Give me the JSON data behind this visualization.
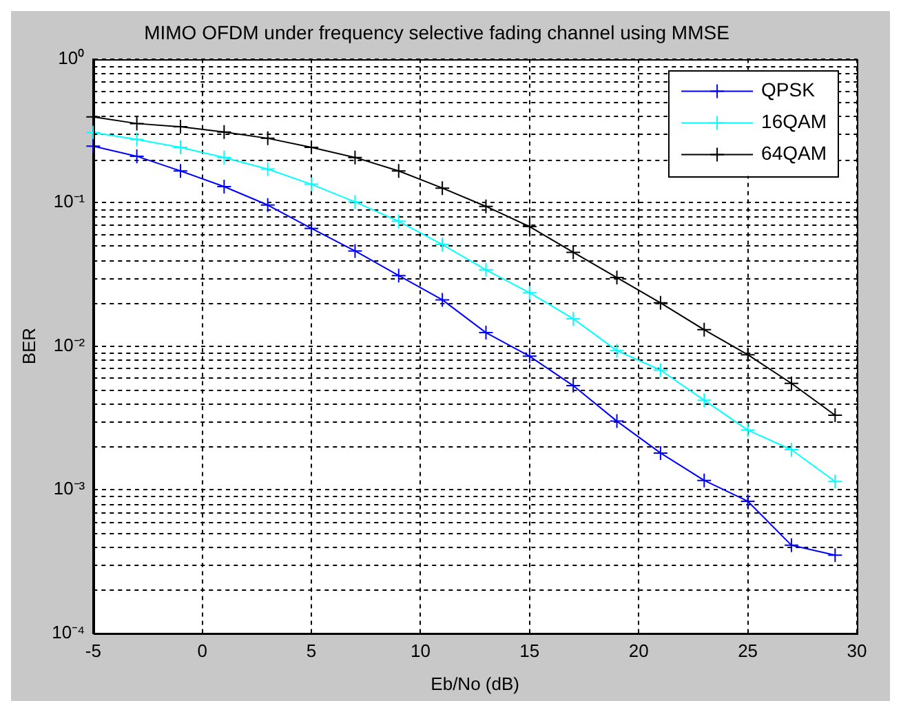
{
  "chart_data": {
    "type": "line",
    "title": "MIMO OFDM under frequency selective fading channel using MMSE",
    "xlabel": "Eb/No (dB)",
    "ylabel": "BER",
    "x": [
      -5,
      -3,
      -1,
      1,
      3,
      5,
      7,
      9,
      11,
      13,
      15,
      17,
      19,
      21,
      23,
      25,
      27,
      29
    ],
    "series": [
      {
        "name": "QPSK",
        "color": "#0000ff",
        "values": [
          0.247,
          0.21,
          0.166,
          0.129,
          0.096,
          0.066,
          0.046,
          0.031,
          0.021,
          0.0124,
          0.0085,
          0.0053,
          0.003,
          0.0018,
          0.00116,
          0.00083,
          0.00041,
          0.00035
        ]
      },
      {
        "name": "16QAM",
        "color": "#00ffff",
        "values": [
          0.307,
          0.275,
          0.242,
          0.206,
          0.171,
          0.134,
          0.101,
          0.074,
          0.051,
          0.034,
          0.0235,
          0.0155,
          0.0093,
          0.0068,
          0.0042,
          0.0026,
          0.0019,
          0.00114
        ]
      },
      {
        "name": "64QAM",
        "color": "#000000",
        "values": [
          0.395,
          0.355,
          0.337,
          0.31,
          0.28,
          0.242,
          0.206,
          0.166,
          0.126,
          0.094,
          0.068,
          0.045,
          0.03,
          0.02,
          0.013,
          0.0087,
          0.0055,
          0.0033
        ]
      }
    ],
    "xlim": [
      -5,
      30
    ],
    "xticks": [
      -5,
      0,
      5,
      10,
      15,
      20,
      25,
      30
    ],
    "ylim": [
      0.0001,
      1
    ],
    "yticks": [
      {
        "value": 0.0001,
        "label": "10⁻⁴"
      },
      {
        "value": 0.001,
        "label": "10⁻³"
      },
      {
        "value": 0.01,
        "label": "10⁻²"
      },
      {
        "value": 0.1,
        "label": "10⁻¹"
      },
      {
        "value": 1,
        "label": "10⁰"
      }
    ],
    "log": true,
    "grid": true,
    "legend": "top right",
    "marker": "cross",
    "line_style": "solid"
  }
}
